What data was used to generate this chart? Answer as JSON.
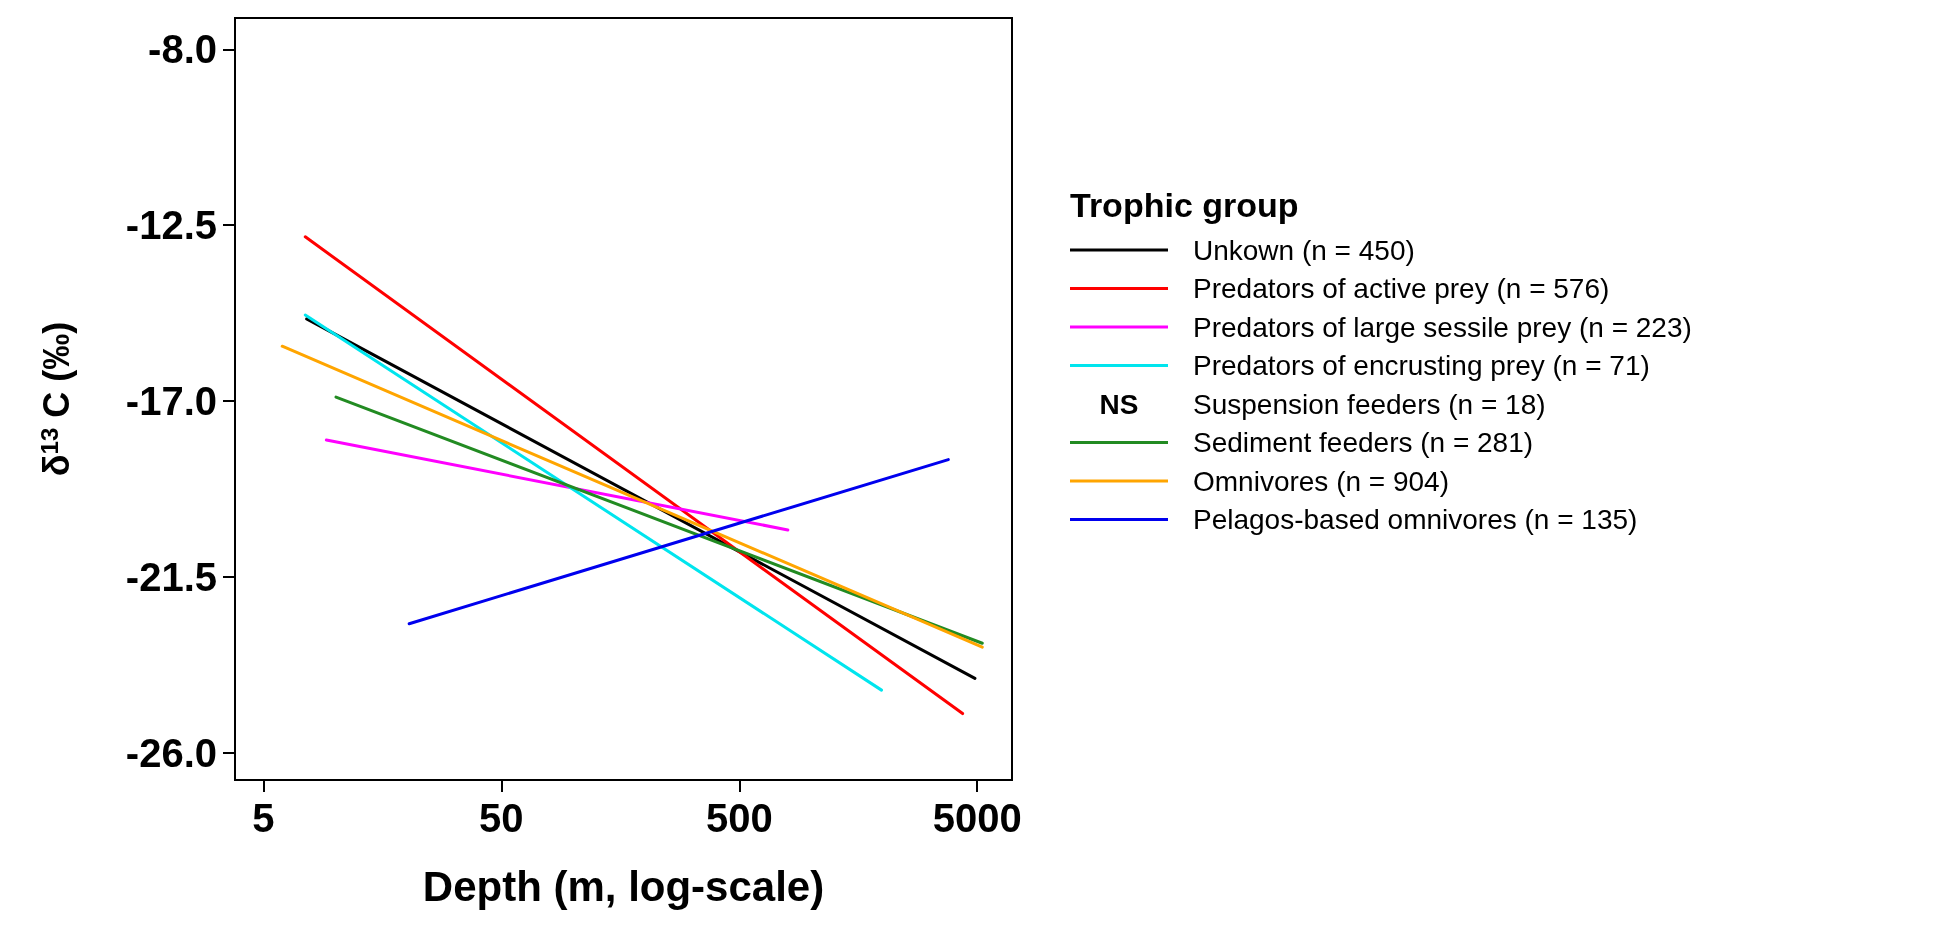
{
  "chart_data": {
    "type": "line",
    "xlabel": "Depth (m, log-scale)",
    "ylabel": "δ$^{13}$ C (‰)",
    "legend_title": "Trophic group",
    "log": "x",
    "xlim": [
      3.8,
      7000
    ],
    "xticks": [
      5,
      50,
      500,
      5000
    ],
    "ylim": [
      -26.7,
      -7.2
    ],
    "yticks": [
      {
        "value": -8,
        "label": "-8.0"
      },
      -12.5,
      {
        "value": -17,
        "label": "-17.0"
      },
      -21.5,
      {
        "value": -26,
        "label": "-26.0"
      }
    ],
    "grid": false,
    "legend": "right",
    "marker": "none",
    "line_style": "solid",
    "annotations": [
      "NS"
    ],
    "series": [
      {
        "name": "Unkown (n = 450)",
        "color": "#000000",
        "x": [
          7.6,
          4890
        ],
        "values": [
          -14.9,
          -24.1
        ]
      },
      {
        "name": "Predators of active prey (n = 576)",
        "color": "#ff0000",
        "x": [
          7.5,
          4340
        ],
        "values": [
          -12.8,
          -25.0
        ]
      },
      {
        "name": "Predators of large sessile prey (n = 223)",
        "color": "#ff00ff",
        "x": [
          9.2,
          800
        ],
        "values": [
          -18.0,
          -20.3
        ]
      },
      {
        "name": "Predators of encrusting prey (n = 71)",
        "color": "#00e5ee",
        "x": [
          7.5,
          1980
        ],
        "values": [
          -14.8,
          -24.4
        ]
      },
      {
        "name": "Suspension feeders (n = 18)"
      },
      {
        "name": "Sediment feeders (n = 281)",
        "color": "#228b22",
        "x": [
          10.1,
          5250
        ],
        "values": [
          -16.9,
          -23.2
        ]
      },
      {
        "name": "Omnivores (n = 904)",
        "color": "#ffa500",
        "x": [
          6.0,
          5250
        ],
        "values": [
          -15.6,
          -23.3
        ]
      },
      {
        "name": "Pelagos-based omnivores (n = 135)",
        "color": "#0000ee",
        "x": [
          20.5,
          3780
        ],
        "values": [
          -22.7,
          -18.5
        ]
      }
    ]
  }
}
